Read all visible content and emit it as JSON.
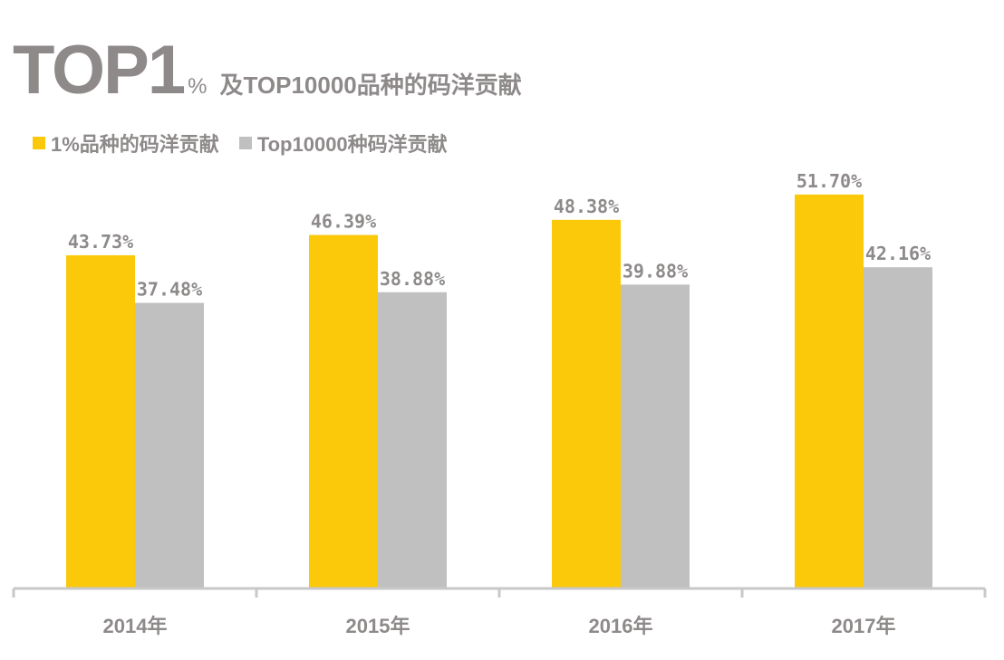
{
  "colors": {
    "title": "#8e8a8a",
    "series1": "#fcc80a",
    "series2": "#c0c0c0",
    "axis": "#c8c8c8",
    "label": "#8e8a8a"
  },
  "title": {
    "big": "TOP1",
    "pct": "%",
    "rest": "及TOP10000品种的码洋贡献"
  },
  "chart_data": {
    "type": "bar",
    "title": "TOP1% 及TOP10000品种的码洋贡献",
    "categories": [
      "2014年",
      "2015年",
      "2016年",
      "2017年"
    ],
    "series": [
      {
        "name": "1%品种的码洋贡献",
        "values": [
          43.73,
          46.39,
          48.38,
          51.7
        ],
        "labels": [
          "43.73%",
          "46.39%",
          "48.38%",
          "51.70%"
        ]
      },
      {
        "name": "Top10000种码洋贡献",
        "values": [
          37.48,
          38.88,
          39.88,
          42.16
        ],
        "labels": [
          "37.48%",
          "38.88%",
          "39.88%",
          "42.16%"
        ]
      }
    ],
    "xlabel": "",
    "ylabel": "",
    "ylim": [
      0,
      60
    ],
    "grid": false,
    "legend": "top-left"
  }
}
